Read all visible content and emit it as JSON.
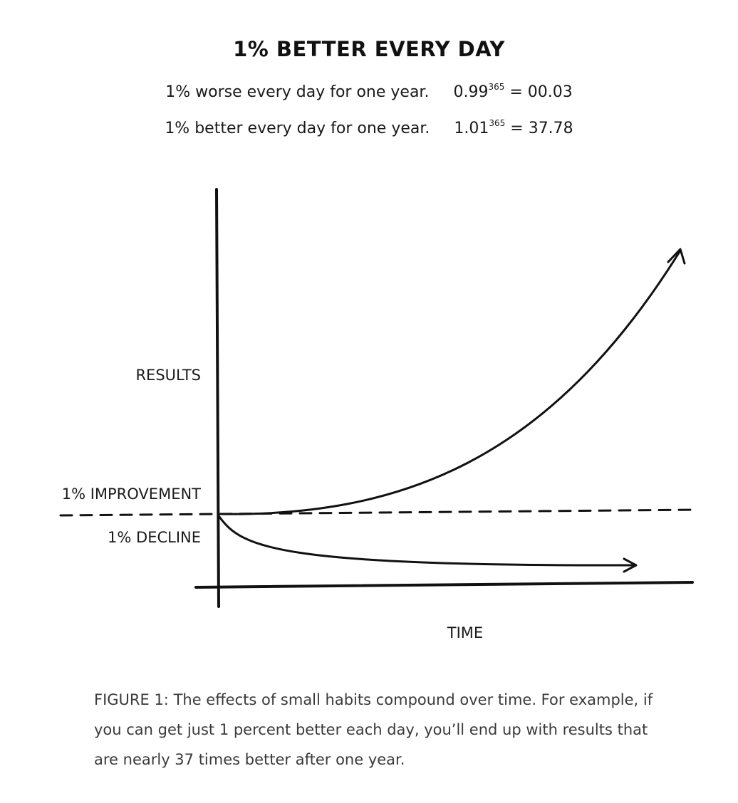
{
  "title": "1% BETTER EVERY DAY",
  "equations": [
    {
      "text": "1% worse every day for one year.",
      "base": "0.99",
      "exponent": "365",
      "result": "= 00.03"
    },
    {
      "text": "1% better every day for one year.",
      "base": "1.01",
      "exponent": "365",
      "result": "= 37.78"
    }
  ],
  "chart": {
    "y_axis_label": "RESULTS",
    "x_axis_label": "TIME",
    "improvement_label": "1% IMPROVEMENT",
    "decline_label": "1% DECLINE"
  },
  "caption": "FIGURE 1: The effects of small habits compound over time. For example, if you can get just 1 percent better each day, you’ll end up with results that are nearly 37 times better after one year."
}
